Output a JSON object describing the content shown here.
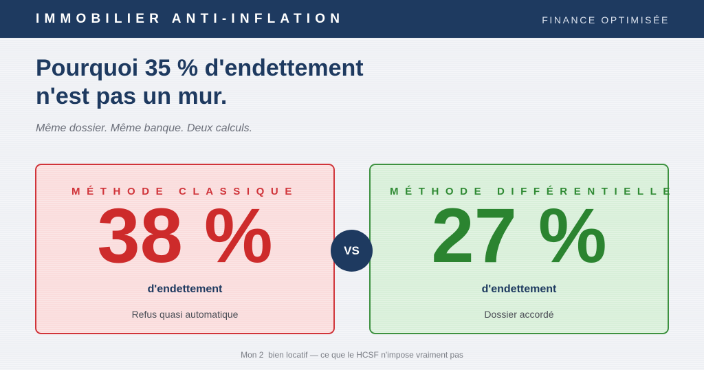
{
  "header": {
    "brand": "IMMOBILIER ANTI-INFLATION",
    "tagline": "FINANCE OPTIMISÉE"
  },
  "hero": {
    "title_line1": "Pourquoi 35 % d'endettement",
    "title_line2": "n'est pas un mur.",
    "subtitle": "Même dossier. Même banque. Deux calculs."
  },
  "comparison": {
    "classic": {
      "label": "MÉTHODE CLASSIQUE",
      "value": "38 %",
      "unit": "d'endettement",
      "verdict": "Refus quasi automatique"
    },
    "vs_label": "VS",
    "differential": {
      "label": "MÉTHODE DIFFÉRENTIELLE",
      "value": "27 %",
      "unit": "d'endettement",
      "verdict": "Dossier accordé"
    }
  },
  "footer": {
    "caption": "Mon 2  bien locatif — ce que le HCSF n'impose vraiment pas"
  },
  "colors": {
    "navy": "#1e3a60",
    "classic_red": "#cd2b2b",
    "classic_bg": "#fadcdc",
    "differential_green": "#2b8430",
    "differential_bg": "#d8efd9"
  }
}
